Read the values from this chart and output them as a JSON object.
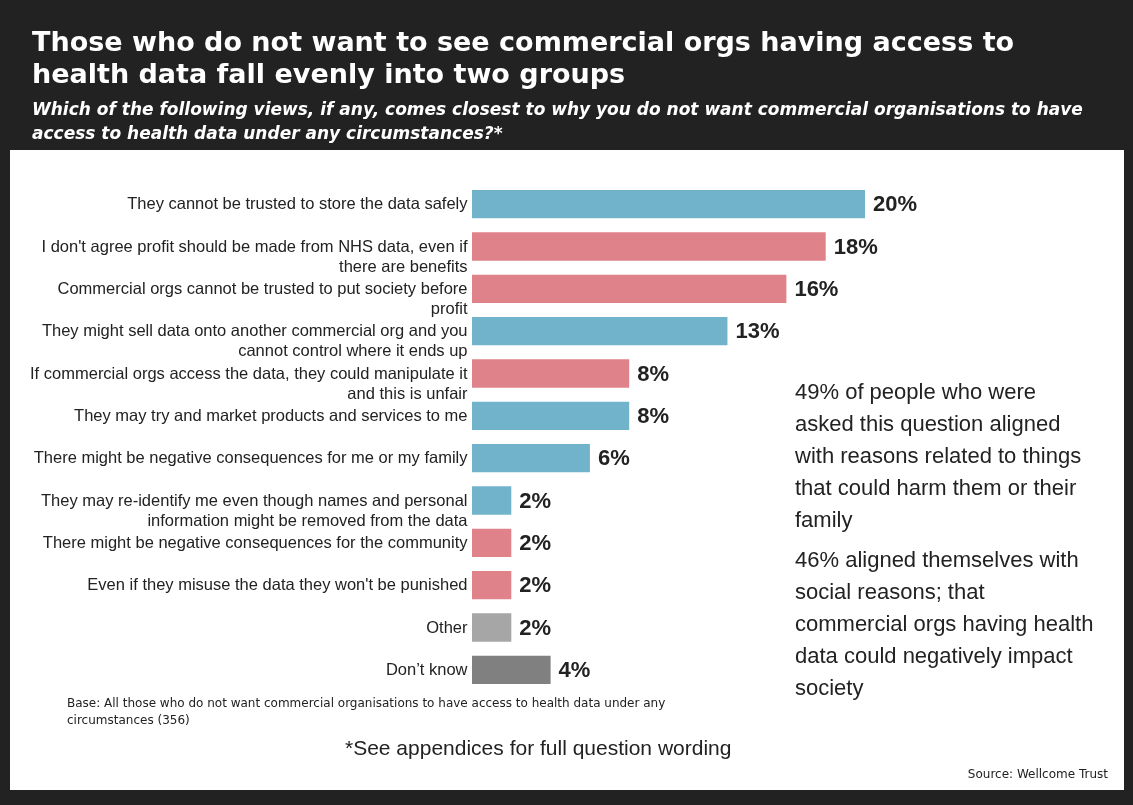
{
  "chart_data": {
    "type": "bar",
    "orientation": "horizontal",
    "title": "Those who do not want to see commercial orgs having access to health data fall evenly into two groups",
    "subtitle": "Which of the following views, if any, comes closest to why you do not want commercial organisations to have access to health data under any circumstances?*",
    "categories": [
      "They cannot be trusted to store the data safely",
      "I don't agree profit should be made from NHS data, even if there are benefits",
      "Commercial orgs cannot be trusted to put society before profit",
      "They might sell data onto another commercial org and you cannot control where it ends up",
      "If commercial orgs access the data, they could manipulate it and this is unfair",
      "They may try and market products and services to me",
      "There might be negative consequences for me or my family",
      "They may re-identify me even though names and personal information might be removed from the data",
      "There might be negative consequences for the community",
      "Even if they misuse the data they won't be punished",
      "Other",
      "Don’t know"
    ],
    "values": [
      20,
      18,
      16,
      13,
      8,
      8,
      6,
      2,
      2,
      2,
      2,
      4
    ],
    "value_labels": [
      "20%",
      "18%",
      "16%",
      "13%",
      "8%",
      "8%",
      "6%",
      "2%",
      "2%",
      "2%",
      "2%",
      "4%"
    ],
    "colors": [
      "#72b3cc",
      "#e0828a",
      "#e0828a",
      "#72b3cc",
      "#e0828a",
      "#72b3cc",
      "#72b3cc",
      "#72b3cc",
      "#e0828a",
      "#e0828a",
      "#a6a6a6",
      "#808080"
    ],
    "annotations": [
      "49% of people who were asked this question aligned with reasons related to things that could harm them or their family",
      "46% aligned themselves with social reasons; that commercial orgs having health data could negatively impact society",
      "Base: All those who do not want commercial organisations to have access to health data under any circumstances (356)",
      "*See appendices for full question wording",
      "Source: Wellcome Trust"
    ]
  }
}
